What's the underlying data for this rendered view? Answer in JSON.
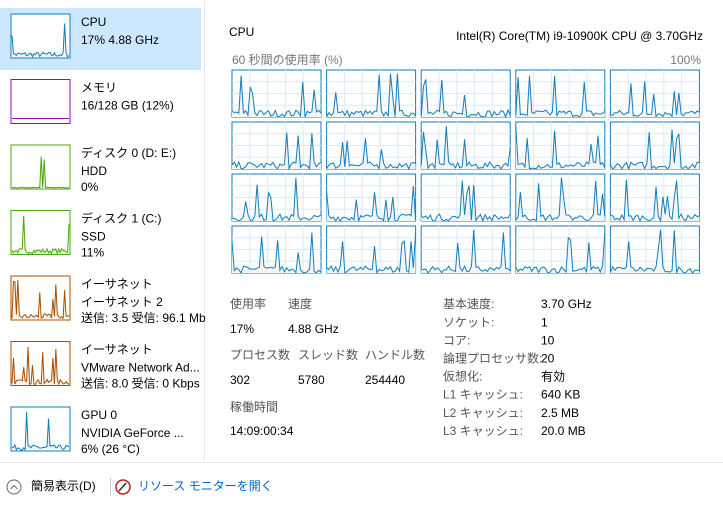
{
  "sidebar": [
    {
      "name": "CPU",
      "lines": [
        "17% 4.88 GHz"
      ]
    },
    {
      "name": "メモリ",
      "lines": [
        "16/128 GB (12%)"
      ]
    },
    {
      "name": "ディスク 0 (D: E:)",
      "lines": [
        "HDD",
        "0%"
      ]
    },
    {
      "name": "ディスク 1 (C:)",
      "lines": [
        "SSD",
        "11%"
      ]
    },
    {
      "name": "イーサネット",
      "lines": [
        "イーサネット 2",
        "送信: 3.5 受信: 96.1 Mb"
      ]
    },
    {
      "name": "イーサネット",
      "lines": [
        "VMware Network Ad...",
        "送信: 8.0 受信: 0 Kbps"
      ]
    },
    {
      "name": "GPU 0",
      "lines": [
        "NVIDIA GeForce ...",
        "6% (26 °C)"
      ]
    }
  ],
  "header": {
    "title": "CPU",
    "model": "Intel(R) Core(TM) i9-10900K CPU @ 3.70GHz"
  },
  "graph": {
    "caption": "60 秒間の使用率 (%)",
    "max_label": "100%"
  },
  "stats": [
    {
      "label": "使用率",
      "value": "17%"
    },
    {
      "label": "速度",
      "value": "4.88 GHz"
    },
    {
      "label": "プロセス数",
      "value": "302"
    },
    {
      "label": "スレッド数",
      "value": "5780"
    },
    {
      "label": "ハンドル数",
      "value": "254440"
    },
    {
      "label": "稼働時間",
      "value": "14:09:00:34"
    }
  ],
  "details": [
    {
      "label": "基本速度:",
      "value": "3.70 GHz"
    },
    {
      "label": "ソケット:",
      "value": "1"
    },
    {
      "label": "コア:",
      "value": "10"
    },
    {
      "label": "論理プロセッサ数:",
      "value": "20"
    },
    {
      "label": "仮想化:",
      "value": "有効"
    },
    {
      "label": "L1 キャッシュ:",
      "value": "640 KB"
    },
    {
      "label": "L2 キャッシュ:",
      "value": "2.5 MB"
    },
    {
      "label": "L3 キャッシュ:",
      "value": "20.0 MB"
    }
  ],
  "footer": {
    "compact": "簡易表示(D)",
    "monitor": "リソース モニターを開く"
  }
}
